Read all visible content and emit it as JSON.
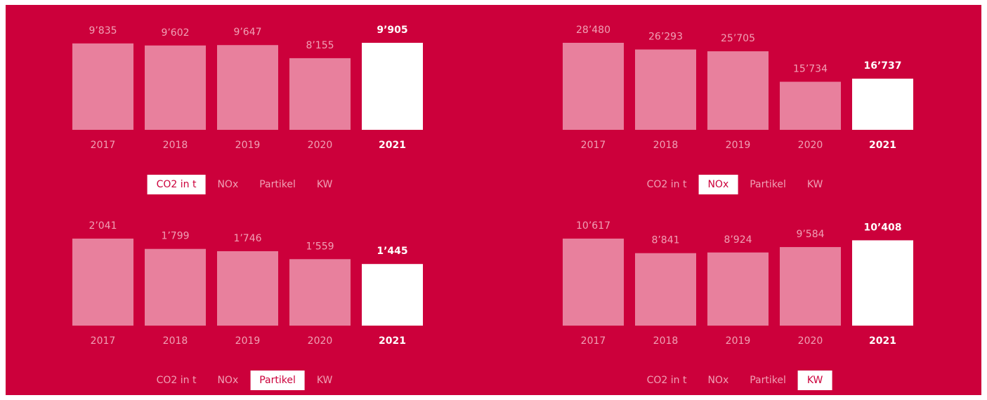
{
  "chart_data": [
    {
      "type": "bar",
      "categories": [
        "2017",
        "2018",
        "2019",
        "2020",
        "2021"
      ],
      "values": [
        9835,
        9602,
        9647,
        8155,
        9905
      ],
      "value_labels": [
        "9’835",
        "9’602",
        "9’647",
        "8’155",
        "9’905"
      ],
      "ylim": [
        0,
        9905
      ],
      "color": "#e8809d",
      "highlight_color": "#ffffff",
      "highlight": 4,
      "tabs": [
        "CO2 in t",
        "NOx",
        "Partikel",
        "KW"
      ],
      "selected_tab": 0
    },
    {
      "type": "bar",
      "categories": [
        "2017",
        "2018",
        "2019",
        "2020",
        "2021"
      ],
      "values": [
        28480,
        26293,
        25705,
        15734,
        16737
      ],
      "value_labels": [
        "28’480",
        "26’293",
        "25’705",
        "15’734",
        "16’737"
      ],
      "ylim": [
        0,
        28480
      ],
      "color": "#e8809d",
      "highlight_color": "#ffffff",
      "highlight": 4,
      "tabs": [
        "CO2 in t",
        "NOx",
        "Partikel",
        "KW"
      ],
      "selected_tab": 1
    },
    {
      "type": "bar",
      "categories": [
        "2017",
        "2018",
        "2019",
        "2020",
        "2021"
      ],
      "values": [
        2041,
        1799,
        1746,
        1559,
        1445
      ],
      "value_labels": [
        "2’041",
        "1’799",
        "1’746",
        "1’559",
        "1’445"
      ],
      "ylim": [
        0,
        2041
      ],
      "color": "#e8809d",
      "highlight_color": "#ffffff",
      "highlight": 4,
      "tabs": [
        "CO2 in t",
        "NOx",
        "Partikel",
        "KW"
      ],
      "selected_tab": 2
    },
    {
      "type": "bar",
      "categories": [
        "2017",
        "2018",
        "2019",
        "2020",
        "2021"
      ],
      "values": [
        10617,
        8841,
        8924,
        9584,
        10408
      ],
      "value_labels": [
        "10’617",
        "8’841",
        "8’924",
        "9’584",
        "10’408"
      ],
      "ylim": [
        0,
        10617
      ],
      "color": "#e8809d",
      "highlight_color": "#ffffff",
      "highlight": 4,
      "tabs": [
        "CO2 in t",
        "NOx",
        "Partikel",
        "KW"
      ],
      "selected_tab": 3
    }
  ]
}
